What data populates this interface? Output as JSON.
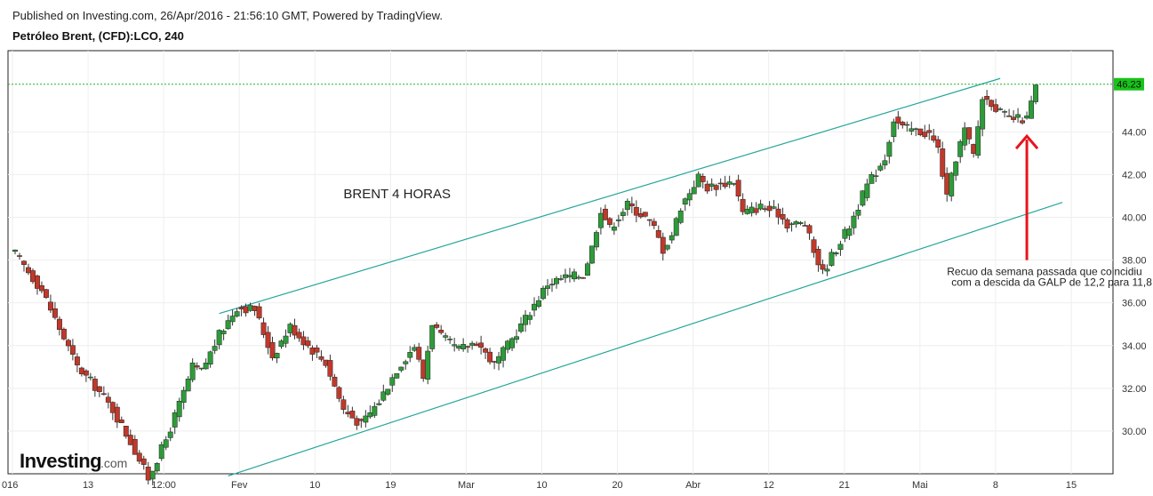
{
  "header": {
    "published": "Published on Investing.com, 26/Apr/2016 - 21:56:10 GMT, Powered by TradingView.",
    "symbol": "Petróleo Brent, (CFD):LCO, 240"
  },
  "logo": {
    "main": "Investing",
    "suffix": ".com"
  },
  "colors": {
    "up": "#2e9b3a",
    "down": "#c0392b",
    "channel": "#26a69a",
    "current_price_line": "#22b422",
    "price_tag_bg": "#19c319",
    "arrow": "#e8141c",
    "grid": "#eeeeee"
  },
  "chart_data": {
    "type": "candlestick",
    "timeframe": "240",
    "instrument": "Petróleo Brent, (CFD):LCO",
    "x_tick_labels": [
      "016",
      "13",
      "12:00",
      "Fev",
      "10",
      "19",
      "Mar",
      "10",
      "20",
      "Abr",
      "12",
      "21",
      "Mai",
      "8",
      "15"
    ],
    "y_tick_labels": [
      "30.00",
      "32.00",
      "34.00",
      "36.00",
      "38.00",
      "40.00",
      "42.00",
      "44.00"
    ],
    "ylim": [
      28.0,
      47.8
    ],
    "grid": true,
    "current_price": 46.23,
    "current_price_label": "46.23",
    "price_path": [
      [
        0,
        38.3
      ],
      [
        3,
        36.6
      ],
      [
        5,
        34.8
      ],
      [
        7,
        33.0
      ],
      [
        9,
        32.1
      ],
      [
        11,
        31.0
      ],
      [
        13,
        29.5
      ],
      [
        15,
        27.8
      ],
      [
        17,
        29.6
      ],
      [
        19,
        31.8
      ],
      [
        20,
        33.0
      ],
      [
        21,
        32.8
      ],
      [
        23,
        34.5
      ],
      [
        25,
        35.8
      ],
      [
        27,
        35.7
      ],
      [
        29,
        33.5
      ],
      [
        31,
        34.9
      ],
      [
        33,
        34.0
      ],
      [
        35,
        33.2
      ],
      [
        37,
        31.0
      ],
      [
        39,
        30.3
      ],
      [
        41,
        31.4
      ],
      [
        43,
        32.9
      ],
      [
        45,
        34.0
      ],
      [
        46,
        32.5
      ],
      [
        47,
        35.1
      ],
      [
        48,
        34.4
      ],
      [
        50,
        33.8
      ],
      [
        52,
        34.2
      ],
      [
        54,
        33.1
      ],
      [
        56,
        34.3
      ],
      [
        58,
        35.6
      ],
      [
        60,
        36.9
      ],
      [
        62,
        37.2
      ],
      [
        64,
        37.3
      ],
      [
        65,
        38.6
      ],
      [
        66,
        40.4
      ],
      [
        67,
        39.5
      ],
      [
        69,
        40.6
      ],
      [
        71,
        40.0
      ],
      [
        72,
        39.5
      ],
      [
        73,
        38.5
      ],
      [
        74,
        39.2
      ],
      [
        75,
        40.5
      ],
      [
        77,
        41.9
      ],
      [
        78,
        41.4
      ],
      [
        79,
        41.5
      ],
      [
        81,
        41.7
      ],
      [
        82,
        40.2
      ],
      [
        84,
        40.5
      ],
      [
        86,
        40.2
      ],
      [
        87,
        39.7
      ],
      [
        89,
        39.7
      ],
      [
        90,
        38.4
      ],
      [
        91,
        37.4
      ],
      [
        92,
        38.2
      ],
      [
        94,
        39.6
      ],
      [
        96,
        41.5
      ],
      [
        98,
        42.8
      ],
      [
        99,
        44.6
      ],
      [
        100,
        44.2
      ],
      [
        101,
        44.1
      ],
      [
        103,
        43.9
      ],
      [
        104,
        43.2
      ],
      [
        105,
        40.9
      ],
      [
        106,
        42.8
      ],
      [
        107,
        44.1
      ],
      [
        108,
        42.9
      ],
      [
        109,
        45.6
      ],
      [
        110,
        45.4
      ],
      [
        111,
        44.9
      ],
      [
        112,
        44.6
      ],
      [
        113,
        44.6
      ],
      [
        114,
        44.6
      ],
      [
        115,
        46.1
      ]
    ],
    "channel_lines": [
      {
        "name": "upper",
        "points": [
          [
            23,
            35.5
          ],
          [
            111,
            46.5
          ]
        ]
      },
      {
        "name": "lower",
        "points": [
          [
            24,
            27.9
          ],
          [
            118,
            40.7
          ]
        ]
      }
    ],
    "annotations": [
      {
        "text": "BRENT 4 HORAS",
        "x": 37,
        "y": 40.9
      },
      {
        "text": "Recuo da semana passada que coincidiu",
        "x": 105,
        "y": 37.3
      },
      {
        "text": "com a descida da GALP de 12,2 para 11,8",
        "x": 105.5,
        "y": 36.8
      }
    ],
    "arrow": {
      "x": 114,
      "y_from": 38.0,
      "y_to": 43.8
    }
  }
}
